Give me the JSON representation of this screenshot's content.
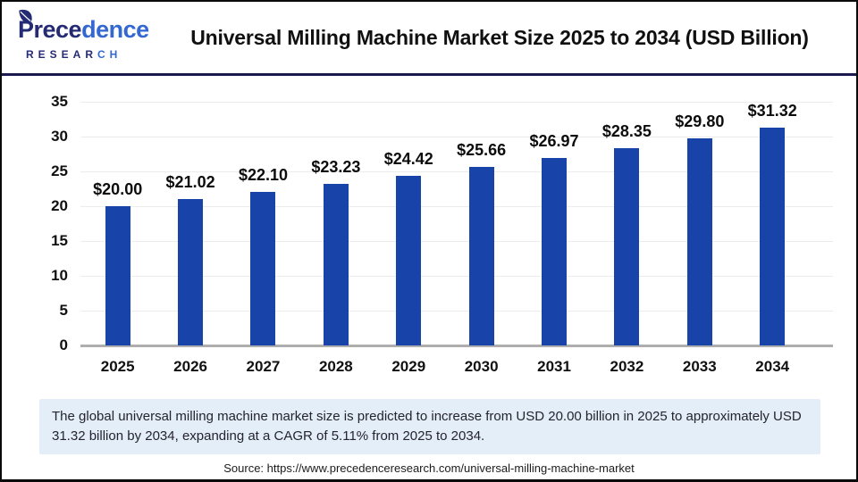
{
  "header": {
    "logo": {
      "name_part1": "Prece",
      "name_part2": "dence",
      "subtitle_part1": "RESEAR",
      "subtitle_part2": "CH"
    },
    "title": "Universal Milling Machine Market Size 2025 to 2034 (USD Billion)"
  },
  "chart_data": {
    "type": "bar",
    "title": "Universal Milling Machine Market Size 2025 to 2034 (USD Billion)",
    "categories": [
      "2025",
      "2026",
      "2027",
      "2028",
      "2029",
      "2030",
      "2031",
      "2032",
      "2033",
      "2034"
    ],
    "values": [
      20.0,
      21.02,
      22.1,
      23.23,
      24.42,
      25.66,
      26.97,
      28.35,
      29.8,
      31.32
    ],
    "value_labels": [
      "$20.00",
      "$21.02",
      "$22.10",
      "$23.23",
      "$24.42",
      "$25.66",
      "$26.97",
      "$28.35",
      "$29.80",
      "$31.32"
    ],
    "xlabel": "",
    "ylabel": "",
    "ylim": [
      0,
      35
    ],
    "yticks": [
      0,
      5,
      10,
      15,
      20,
      25,
      30,
      35
    ],
    "grid": true,
    "legend": "none",
    "bar_color": "#1843a8"
  },
  "footer": {
    "note": "The global universal milling machine market size is predicted to increase from USD 20.00 billion in 2025 to approximately USD 31.32 billion by 2034, expanding at a CAGR of 5.11% from 2025 to 2034.",
    "source": "Source: https://www.precedenceresearch.com/universal-milling-machine-market"
  },
  "colors": {
    "bar": "#1843a8",
    "divider": "#1a1a4e",
    "note_bg": "#e4eef8",
    "logo_dark": "#252a74",
    "logo_light": "#3468d1"
  }
}
